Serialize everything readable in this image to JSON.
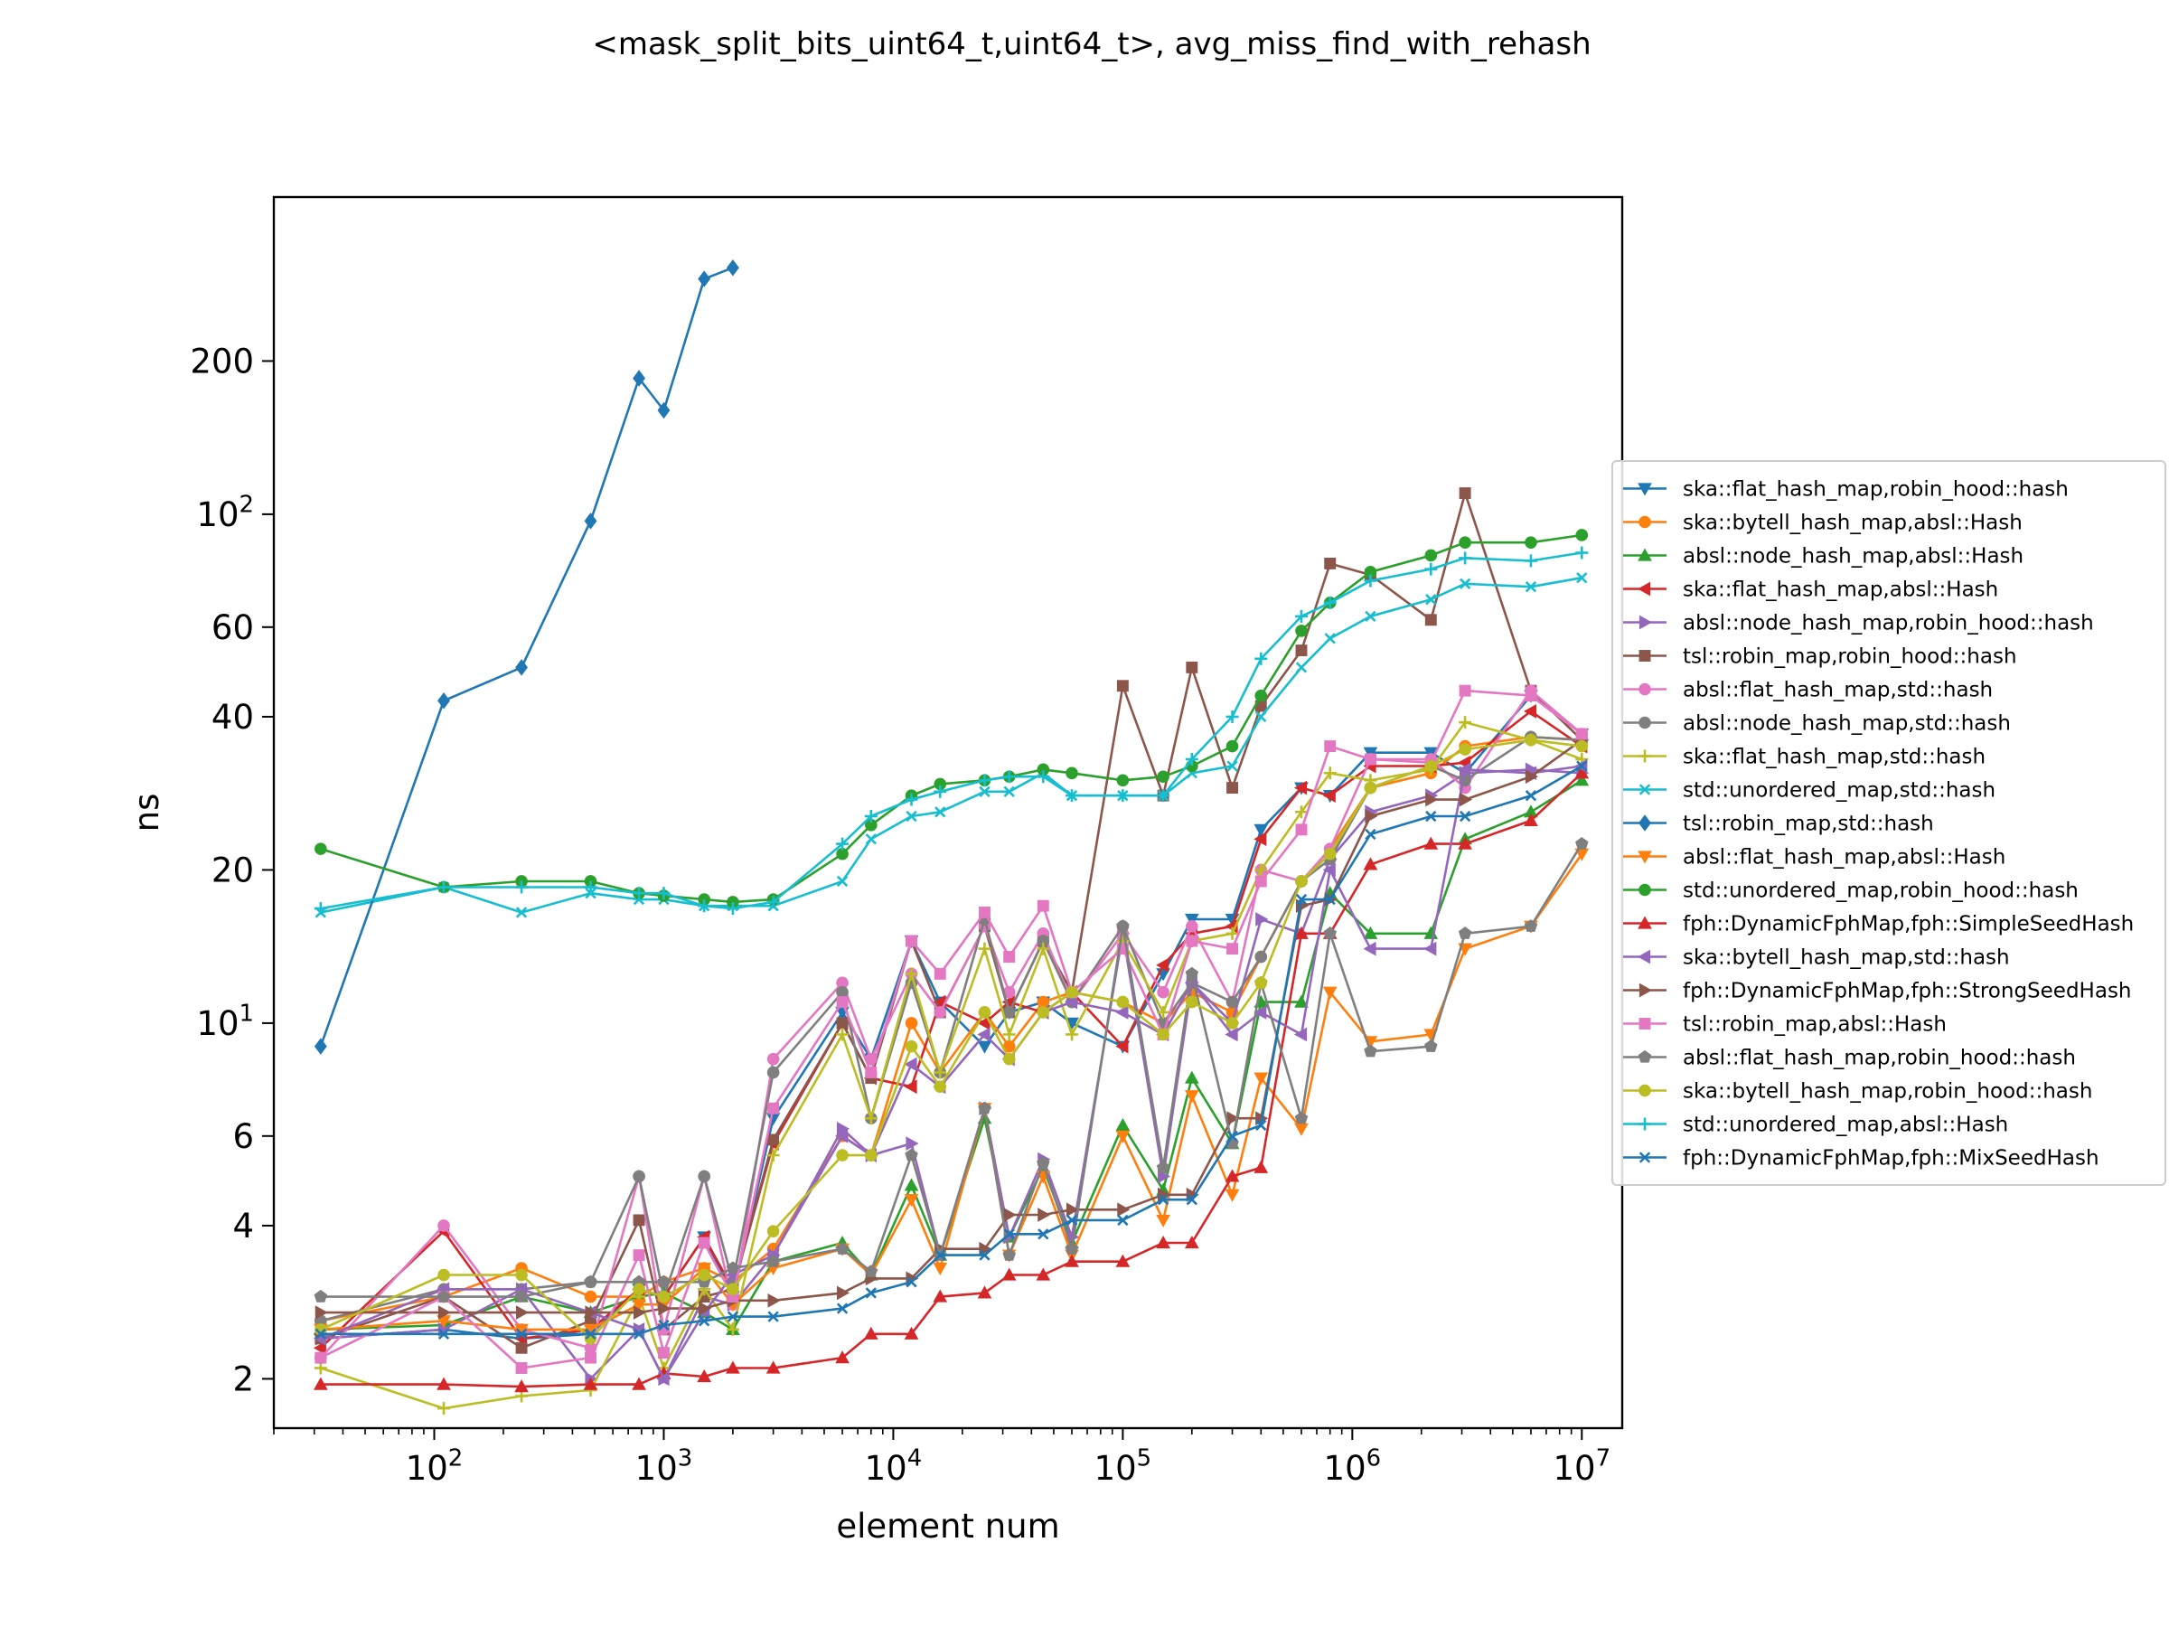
{
  "chart_data": {
    "type": "line",
    "title": "<mask_split_bits_uint64_t,uint64_t>, avg_miss_find_with_rehash",
    "xlabel": "element num",
    "ylabel": "ns",
    "xscale": "log",
    "yscale": "log",
    "xlim": [
      20,
      15000000
    ],
    "ylim": [
      1.6,
      420
    ],
    "grid": false,
    "legend_position": "right, outside plot",
    "x_ticks": [
      {
        "value": 100,
        "base": "10",
        "exp": "2"
      },
      {
        "value": 1000,
        "base": "10",
        "exp": "3"
      },
      {
        "value": 10000,
        "base": "10",
        "exp": "4"
      },
      {
        "value": 100000,
        "base": "10",
        "exp": "5"
      },
      {
        "value": 1000000,
        "base": "10",
        "exp": "6"
      },
      {
        "value": 10000000,
        "base": "10",
        "exp": "7"
      }
    ],
    "y_ticks": [
      {
        "value": 2,
        "label": "2"
      },
      {
        "value": 4,
        "label": "4"
      },
      {
        "value": 6,
        "label": "6"
      },
      {
        "value": 10,
        "base": "10",
        "exp": "1"
      },
      {
        "value": 20,
        "label": "20"
      },
      {
        "value": 40,
        "label": "40"
      },
      {
        "value": 60,
        "label": "60"
      },
      {
        "value": 100,
        "base": "10",
        "exp": "2"
      },
      {
        "value": 200,
        "label": "200"
      }
    ],
    "x": [
      32,
      110,
      240,
      480,
      780,
      1000,
      1500,
      2000,
      3000,
      6000,
      8000,
      12000,
      16000,
      25000,
      32000,
      45000,
      60000,
      100000,
      150000,
      200000,
      300000,
      400000,
      600000,
      800000,
      1200000,
      2200000,
      3100000,
      6000000,
      10000000
    ],
    "series": [
      {
        "name": "ska::flat_hash_map,robin_hood::hash",
        "color": "#1f77b4",
        "marker": "tri-down",
        "values": [
          2.4,
          2.5,
          2.4,
          2.45,
          3.0,
          2.9,
          3.8,
          2.9,
          6.5,
          10.5,
          8.5,
          14.5,
          11.0,
          9.0,
          10.5,
          11.0,
          10.0,
          9.0,
          12.5,
          16.0,
          16.0,
          24.0,
          29.0,
          28.0,
          34.0,
          34.0,
          31.0,
          44.0,
          37.0
        ]
      },
      {
        "name": "ska::bytell_hash_map,absl::Hash",
        "color": "#ff7f0e",
        "marker": "circle",
        "values": [
          2.6,
          2.9,
          3.3,
          2.9,
          2.9,
          3.1,
          3.3,
          3.1,
          3.6,
          6.0,
          5.5,
          10.0,
          8.0,
          10.5,
          9.0,
          11.0,
          11.5,
          11.0,
          10.0,
          11.5,
          10.5,
          13.5,
          19.0,
          22.0,
          29.0,
          31.0,
          35.0,
          36.5,
          36.0
        ]
      },
      {
        "name": "absl::node_hash_map,absl::Hash",
        "color": "#2ca02c",
        "marker": "tri-up",
        "values": [
          2.5,
          2.55,
          2.9,
          2.7,
          2.9,
          2.95,
          2.7,
          2.5,
          3.4,
          3.7,
          3.2,
          4.8,
          3.5,
          6.5,
          3.8,
          5.2,
          3.7,
          6.3,
          4.7,
          7.8,
          5.8,
          11.0,
          11.0,
          18.0,
          15.0,
          15.0,
          23.0,
          26.0,
          30.0
        ]
      },
      {
        "name": "ska::flat_hash_map,absl::Hash",
        "color": "#d62728",
        "marker": "tri-left",
        "values": [
          2.3,
          3.9,
          2.4,
          2.5,
          3.0,
          2.9,
          3.8,
          3.0,
          5.8,
          10.0,
          7.8,
          7.5,
          11.0,
          10.0,
          11.0,
          10.5,
          11.5,
          9.0,
          13.0,
          15.0,
          15.5,
          23.0,
          29.0,
          28.0,
          32.0,
          32.0,
          32.5,
          41.0,
          35.0
        ]
      },
      {
        "name": "absl::node_hash_map,robin_hood::hash",
        "color": "#9467bd",
        "marker": "tri-right",
        "values": [
          2.4,
          2.5,
          3.0,
          2.0,
          2.5,
          2.0,
          2.9,
          2.8,
          3.5,
          6.2,
          5.5,
          5.8,
          3.5,
          6.8,
          3.8,
          5.4,
          3.8,
          15.0,
          5.0,
          12.0,
          10.0,
          16.0,
          15.0,
          21.0,
          26.0,
          28.0,
          31.0,
          31.5,
          31.0
        ]
      },
      {
        "name": "tsl::robin_map,robin_hood::hash",
        "color": "#8c564b",
        "marker": "square",
        "values": [
          2.4,
          2.9,
          2.3,
          2.6,
          4.1,
          2.5,
          2.9,
          3.0,
          5.9,
          10.0,
          7.8,
          14.5,
          10.5,
          15.5,
          10.5,
          14.5,
          11.5,
          46.0,
          28.0,
          50.0,
          29.0,
          42.0,
          54.0,
          80.0,
          76.0,
          62.0,
          110.0,
          45.0,
          36.0
        ]
      },
      {
        "name": "absl::flat_hash_map,std::hash",
        "color": "#e377c2",
        "marker": "circle",
        "values": [
          2.2,
          4.0,
          2.5,
          2.3,
          5.0,
          2.5,
          5.0,
          2.8,
          8.5,
          12.0,
          8.5,
          12.5,
          10.5,
          15.5,
          11.5,
          15.0,
          11.0,
          15.0,
          11.5,
          15.5,
          11.0,
          20.0,
          19.0,
          22.0,
          33.0,
          33.0,
          29.0,
          45.0,
          37.0
        ]
      },
      {
        "name": "absl::node_hash_map,std::hash",
        "color": "#7f7f7f",
        "marker": "circle",
        "values": [
          2.6,
          3.0,
          3.0,
          3.1,
          5.0,
          2.9,
          5.0,
          3.1,
          8.0,
          11.5,
          6.5,
          12.0,
          8.0,
          16.0,
          10.5,
          14.5,
          11.0,
          15.5,
          10.0,
          12.0,
          11.0,
          13.5,
          19.0,
          21.0,
          29.0,
          32.0,
          30.0,
          36.5,
          36.0
        ]
      },
      {
        "name": "ska::flat_hash_map,std::hash",
        "color": "#bcbd22",
        "marker": "plus",
        "values": [
          2.1,
          1.75,
          1.85,
          1.9,
          2.9,
          2.1,
          3.0,
          2.5,
          5.5,
          9.5,
          6.5,
          12.5,
          8.0,
          14.0,
          9.5,
          14.0,
          9.5,
          14.5,
          10.5,
          14.5,
          15.0,
          20.0,
          26.0,
          31.0,
          30.0,
          31.5,
          39.0,
          36.0,
          33.0
        ]
      },
      {
        "name": "std::unordered_map,std::hash",
        "color": "#17becf",
        "marker": "x",
        "values": [
          16.5,
          18.5,
          16.5,
          18.0,
          17.5,
          17.5,
          17.0,
          17.0,
          17.0,
          19.0,
          23.0,
          25.5,
          26.0,
          28.5,
          28.5,
          31.0,
          28.0,
          28.0,
          28.0,
          31.0,
          32.0,
          40.0,
          50.0,
          57.0,
          63.0,
          68.0,
          73.0,
          72.0,
          75.0
        ]
      },
      {
        "name": "tsl::robin_map,std::hash",
        "color": "#1f77b4",
        "marker": "diamond",
        "values": [
          9.0,
          43.0,
          50.0,
          97.0,
          185.0,
          160.0,
          290.0,
          305.0,
          null,
          null,
          null,
          null,
          null,
          null,
          null,
          null,
          null,
          null,
          null,
          null,
          null,
          null,
          null,
          null,
          null,
          null,
          null,
          null,
          null
        ]
      },
      {
        "name": "absl::flat_hash_map,absl::Hash",
        "color": "#ff7f0e",
        "marker": "tri-down",
        "values": [
          2.5,
          2.6,
          2.5,
          2.5,
          2.8,
          2.8,
          3.3,
          2.8,
          3.3,
          3.6,
          3.2,
          4.5,
          3.3,
          6.8,
          3.5,
          5.0,
          3.5,
          6.0,
          4.1,
          7.2,
          4.6,
          7.8,
          6.2,
          11.5,
          9.2,
          9.5,
          14.0,
          15.5,
          21.5
        ]
      },
      {
        "name": "std::unordered_map,robin_hood::hash",
        "color": "#2ca02c",
        "marker": "circle",
        "values": [
          22.0,
          18.5,
          19.0,
          19.0,
          18.0,
          17.8,
          17.5,
          17.3,
          17.5,
          21.5,
          24.5,
          28.0,
          29.5,
          30.0,
          30.5,
          31.5,
          31.0,
          30.0,
          30.5,
          32.0,
          35.0,
          44.0,
          59.0,
          67.0,
          77.0,
          83.0,
          88.0,
          88.0,
          91.0
        ]
      },
      {
        "name": "fph::DynamicFphMap,fph::SimpleSeedHash",
        "color": "#d62728",
        "marker": "tri-up",
        "values": [
          1.95,
          1.95,
          1.93,
          1.95,
          1.95,
          2.05,
          2.02,
          2.1,
          2.1,
          2.2,
          2.45,
          2.45,
          2.9,
          2.95,
          3.2,
          3.2,
          3.4,
          3.4,
          3.7,
          3.7,
          5.0,
          5.2,
          15.0,
          15.0,
          20.5,
          22.5,
          22.5,
          25.0,
          31.0
        ]
      },
      {
        "name": "ska::bytell_hash_map,std::hash",
        "color": "#9467bd",
        "marker": "tri-left",
        "values": [
          2.4,
          3.0,
          3.0,
          2.7,
          2.5,
          2.0,
          2.7,
          3.2,
          3.5,
          6.0,
          5.5,
          8.3,
          7.5,
          9.5,
          8.5,
          10.5,
          11.0,
          10.5,
          9.5,
          12.0,
          9.5,
          10.5,
          9.5,
          20.0,
          14.0,
          14.0,
          31.5,
          31.0,
          32.0
        ]
      },
      {
        "name": "fph::DynamicFphMap,fph::StrongSeedHash",
        "color": "#8c564b",
        "marker": "tri-right",
        "values": [
          2.7,
          2.7,
          2.7,
          2.7,
          2.7,
          2.75,
          2.75,
          2.85,
          2.85,
          2.95,
          3.15,
          3.15,
          3.6,
          3.6,
          4.2,
          4.2,
          4.3,
          4.3,
          4.6,
          4.6,
          6.5,
          6.5,
          17.0,
          17.5,
          25.5,
          27.5,
          27.5,
          30.5,
          36.0
        ]
      },
      {
        "name": "tsl::robin_map,absl::Hash",
        "color": "#e377c2",
        "marker": "square",
        "values": [
          2.2,
          2.9,
          2.1,
          2.2,
          3.5,
          2.25,
          3.7,
          2.9,
          6.8,
          11.0,
          8.0,
          14.5,
          12.5,
          16.5,
          13.5,
          17.0,
          11.5,
          14.0,
          9.5,
          14.5,
          14.0,
          19.0,
          24.0,
          35.0,
          33.0,
          32.5,
          45.0,
          44.0,
          37.0
        ]
      },
      {
        "name": "absl::flat_hash_map,robin_hood::hash",
        "color": "#7f7f7f",
        "marker": "pentagon",
        "values": [
          2.9,
          2.9,
          2.9,
          3.1,
          3.1,
          3.1,
          3.1,
          3.3,
          3.4,
          3.6,
          3.25,
          5.5,
          3.5,
          6.8,
          3.5,
          5.3,
          3.6,
          15.5,
          5.2,
          12.5,
          5.8,
          12.0,
          6.5,
          15.0,
          8.8,
          9.0,
          15.0,
          15.5,
          22.5
        ]
      },
      {
        "name": "ska::bytell_hash_map,robin_hood::hash",
        "color": "#bcbd22",
        "marker": "circle",
        "values": [
          2.5,
          3.2,
          3.2,
          2.4,
          3.0,
          2.9,
          3.2,
          3.0,
          3.9,
          5.5,
          5.5,
          9.0,
          7.5,
          10.5,
          8.5,
          10.5,
          11.5,
          11.0,
          9.5,
          11.0,
          10.0,
          12.0,
          19.0,
          21.5,
          29.0,
          32.0,
          34.5,
          36.0,
          35.0
        ]
      },
      {
        "name": "std::unordered_map,absl::Hash",
        "color": "#17becf",
        "marker": "plus",
        "values": [
          16.8,
          18.5,
          18.5,
          18.5,
          18.0,
          18.0,
          17.0,
          16.8,
          17.3,
          22.5,
          25.5,
          27.5,
          28.5,
          30.0,
          30.5,
          30.5,
          28.0,
          28.0,
          28.0,
          33.0,
          40.0,
          52.0,
          63.0,
          67.0,
          74.0,
          78.0,
          82.0,
          81.0,
          84.0
        ]
      },
      {
        "name": "fph::DynamicFphMap,fph::MixSeedHash",
        "color": "#1f77b4",
        "marker": "x",
        "values": [
          2.45,
          2.45,
          2.45,
          2.45,
          2.45,
          2.55,
          2.6,
          2.65,
          2.65,
          2.75,
          2.95,
          3.1,
          3.5,
          3.5,
          3.85,
          3.85,
          4.1,
          4.1,
          4.5,
          4.5,
          6.0,
          6.3,
          17.5,
          17.5,
          23.5,
          25.5,
          25.5,
          28.0,
          32.0
        ]
      }
    ]
  }
}
